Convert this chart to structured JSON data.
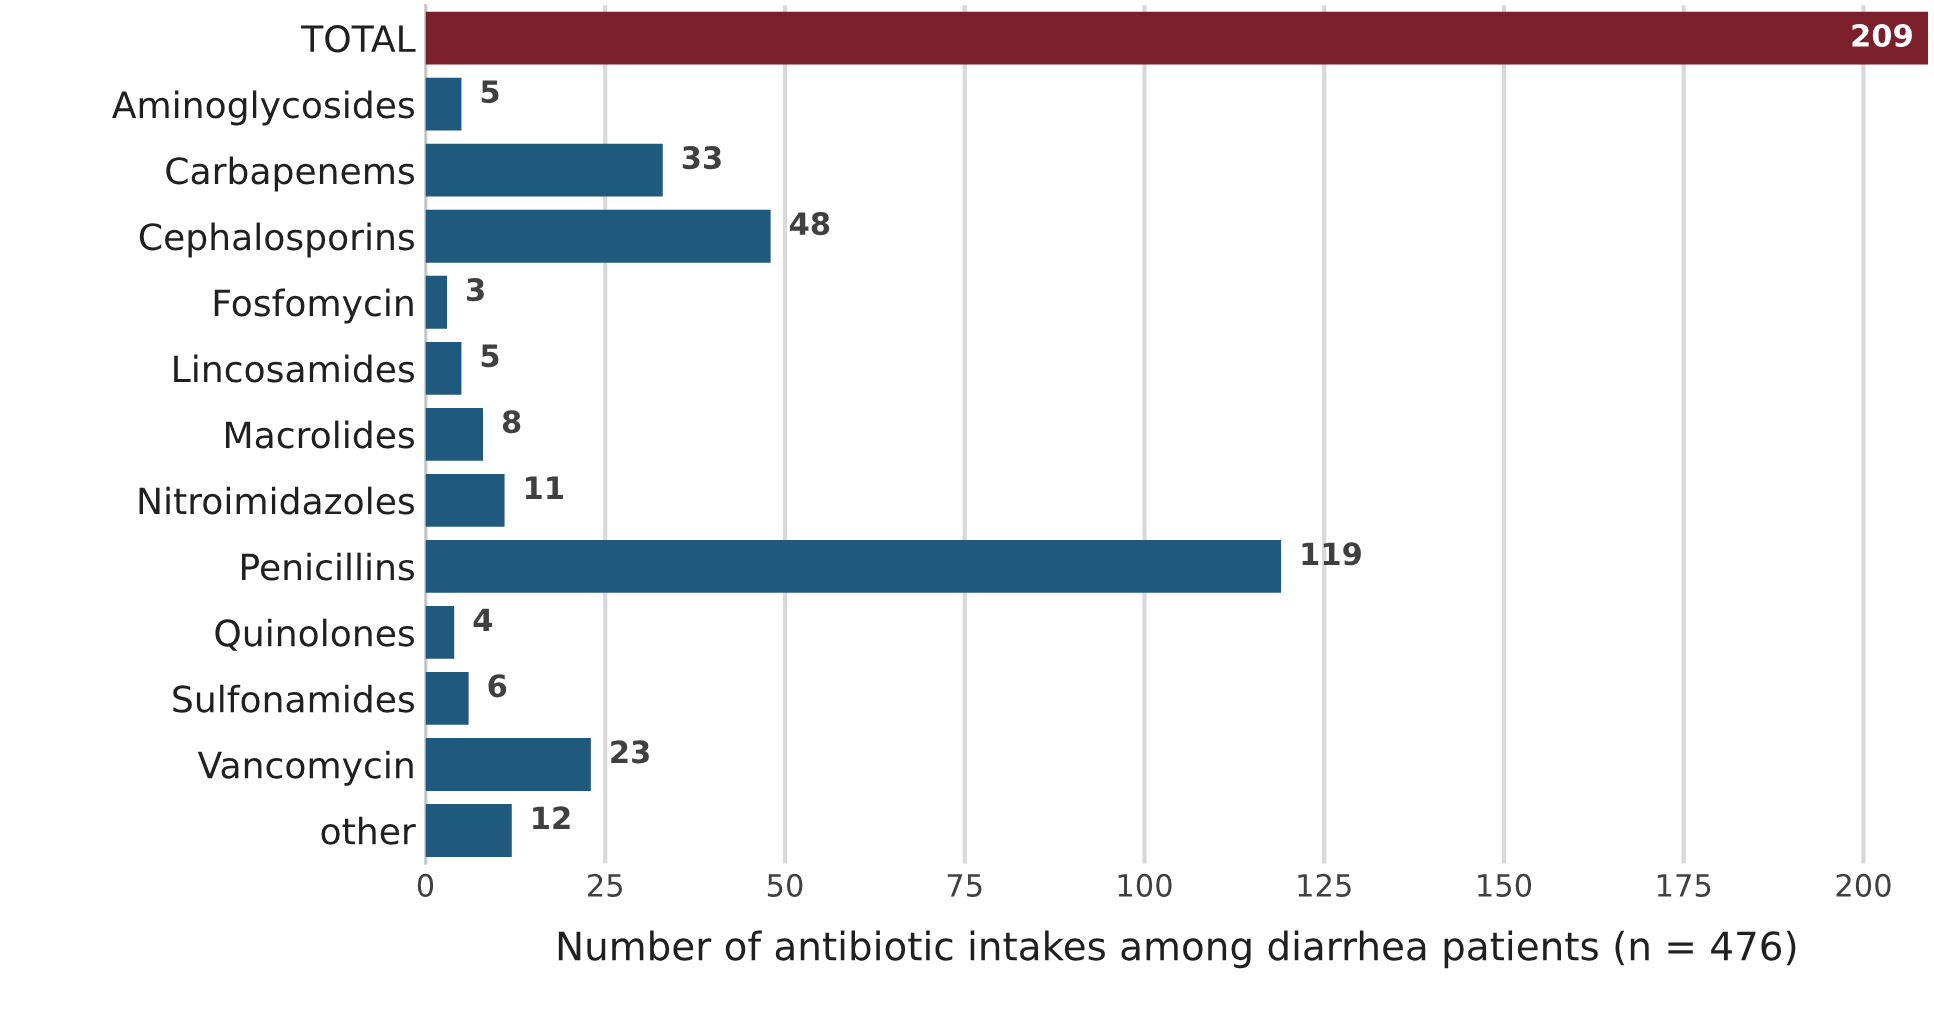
{
  "chart_data": {
    "type": "bar",
    "orientation": "horizontal",
    "xlabel": "Number of antibiotic intakes among diarrhea patients (n = 476)",
    "categories": [
      "TOTAL",
      "Aminoglycosides",
      "Carbapenems",
      "Cephalosporins",
      "Fosfomycin",
      "Lincosamides",
      "Macrolides",
      "Nitroimidazoles",
      "Penicillins",
      "Quinolones",
      "Sulfonamides",
      "Vancomycin",
      "other"
    ],
    "values": [
      209,
      5,
      33,
      48,
      3,
      5,
      8,
      11,
      119,
      4,
      6,
      23,
      12
    ],
    "colors": [
      "#7b1f2b",
      "#1f5a7e",
      "#1f5a7e",
      "#1f5a7e",
      "#1f5a7e",
      "#1f5a7e",
      "#1f5a7e",
      "#1f5a7e",
      "#1f5a7e",
      "#1f5a7e",
      "#1f5a7e",
      "#1f5a7e",
      "#1f5a7e"
    ],
    "xlim": [
      0,
      209
    ],
    "xticks": [
      0,
      25,
      50,
      75,
      100,
      125,
      150,
      175,
      200
    ],
    "grid": "x",
    "data_labels": true,
    "legend": false
  }
}
